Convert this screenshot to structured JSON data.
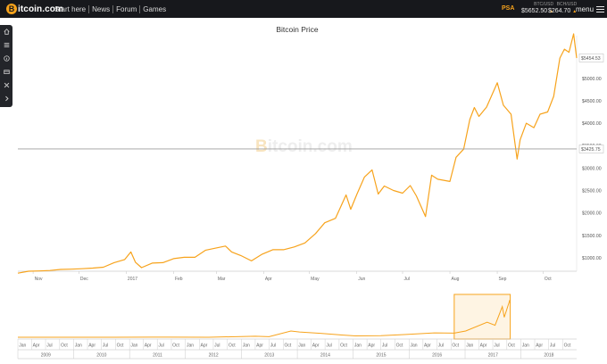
{
  "site": {
    "logo_text": "itcoin.com",
    "logo_mark": "B",
    "nav": [
      "Start here",
      "News",
      "Forum",
      "Games"
    ],
    "psa": "PSA",
    "tickers": [
      {
        "pair": "BTC/USD",
        "price": "$5652.50",
        "direction": "up"
      },
      {
        "pair": "BCH/USD",
        "price": "$264.70",
        "direction": "up"
      }
    ],
    "menu_label": "menu",
    "accent_color": "#f7a31c"
  },
  "sidebar": {
    "icons": [
      "home-icon",
      "list-icon",
      "info-icon",
      "wallet-icon",
      "tools-icon",
      "expand-chevron-icon"
    ]
  },
  "chart": {
    "title": "Bitcoin Price",
    "watermark_mark": "B",
    "watermark_text": "itcoin.com",
    "crosshair_label": "$3425.75",
    "last_label": "$5454.53"
  },
  "chart_data": {
    "type": "line",
    "title": "Bitcoin Price",
    "line_color": "#f7a31c",
    "main": {
      "x_ticks": [
        "Nov",
        "Dec",
        "2017",
        "Feb",
        "Mar",
        "Apr",
        "May",
        "Jun",
        "Jul",
        "Aug",
        "Sep",
        "Oct"
      ],
      "y_ticks": [
        "$1000.00",
        "$1500.00",
        "$2000.00",
        "$2500.00",
        "$3000.00",
        "$3500.00",
        "$4000.00",
        "$4500.00",
        "$5000.00",
        "$5500.00"
      ],
      "ylim": [
        700,
        5950
      ],
      "x_range": [
        "2016-10-22",
        "2017-10-23"
      ],
      "crosshair_value": 3425.75,
      "last_value": 5454.53,
      "points": [
        [
          "2016-10-22",
          656
        ],
        [
          "2016-10-29",
          700
        ],
        [
          "2016-11-05",
          705
        ],
        [
          "2016-11-12",
          715
        ],
        [
          "2016-11-19",
          740
        ],
        [
          "2016-11-26",
          745
        ],
        [
          "2016-12-03",
          755
        ],
        [
          "2016-12-10",
          770
        ],
        [
          "2016-12-17",
          790
        ],
        [
          "2016-12-24",
          890
        ],
        [
          "2016-12-31",
          960
        ],
        [
          "2017-01-04",
          1130
        ],
        [
          "2017-01-07",
          900
        ],
        [
          "2017-01-11",
          780
        ],
        [
          "2017-01-18",
          880
        ],
        [
          "2017-01-25",
          890
        ],
        [
          "2017-02-01",
          980
        ],
        [
          "2017-02-08",
          1010
        ],
        [
          "2017-02-15",
          1010
        ],
        [
          "2017-02-22",
          1170
        ],
        [
          "2017-03-01",
          1220
        ],
        [
          "2017-03-07",
          1260
        ],
        [
          "2017-03-11",
          1130
        ],
        [
          "2017-03-17",
          1050
        ],
        [
          "2017-03-24",
          930
        ],
        [
          "2017-03-31",
          1080
        ],
        [
          "2017-04-07",
          1180
        ],
        [
          "2017-04-14",
          1180
        ],
        [
          "2017-04-21",
          1240
        ],
        [
          "2017-04-28",
          1330
        ],
        [
          "2017-05-05",
          1540
        ],
        [
          "2017-05-11",
          1780
        ],
        [
          "2017-05-18",
          1880
        ],
        [
          "2017-05-25",
          2400
        ],
        [
          "2017-05-28",
          2080
        ],
        [
          "2017-06-01",
          2410
        ],
        [
          "2017-06-06",
          2800
        ],
        [
          "2017-06-11",
          2960
        ],
        [
          "2017-06-15",
          2420
        ],
        [
          "2017-06-19",
          2600
        ],
        [
          "2017-06-25",
          2500
        ],
        [
          "2017-07-01",
          2440
        ],
        [
          "2017-07-06",
          2610
        ],
        [
          "2017-07-10",
          2380
        ],
        [
          "2017-07-16",
          1920
        ],
        [
          "2017-07-20",
          2840
        ],
        [
          "2017-07-24",
          2750
        ],
        [
          "2017-08-01",
          2700
        ],
        [
          "2017-08-05",
          3240
        ],
        [
          "2017-08-10",
          3420
        ],
        [
          "2017-08-14",
          4080
        ],
        [
          "2017-08-17",
          4350
        ],
        [
          "2017-08-20",
          4150
        ],
        [
          "2017-08-25",
          4360
        ],
        [
          "2017-09-01",
          4900
        ],
        [
          "2017-09-05",
          4400
        ],
        [
          "2017-09-10",
          4200
        ],
        [
          "2017-09-14",
          3200
        ],
        [
          "2017-09-16",
          3630
        ],
        [
          "2017-09-20",
          4000
        ],
        [
          "2017-09-25",
          3900
        ],
        [
          "2017-09-29",
          4200
        ],
        [
          "2017-10-04",
          4250
        ],
        [
          "2017-10-08",
          4600
        ],
        [
          "2017-10-12",
          5450
        ],
        [
          "2017-10-15",
          5650
        ],
        [
          "2017-10-18",
          5580
        ],
        [
          "2017-10-21",
          5990
        ],
        [
          "2017-10-23",
          5450
        ]
      ]
    },
    "navigator": {
      "x_range": [
        "2009-01-01",
        "2018-12-31"
      ],
      "selection": [
        "2016-10-22",
        "2017-10-23"
      ],
      "month_ticks": [
        "Jan",
        "Apr",
        "Jul",
        "Oct"
      ],
      "year_labels": [
        "2009",
        "2010",
        "2011",
        "2012",
        "2013",
        "2014",
        "2015",
        "2016",
        "2017",
        "2018"
      ],
      "points": [
        [
          "2009-01-01",
          0
        ],
        [
          "2010-07-01",
          0
        ],
        [
          "2011-06-01",
          20
        ],
        [
          "2011-09-01",
          8
        ],
        [
          "2012-06-01",
          6
        ],
        [
          "2013-04-01",
          150
        ],
        [
          "2013-07-01",
          90
        ],
        [
          "2013-11-20",
          1000
        ],
        [
          "2014-01-15",
          850
        ],
        [
          "2014-06-01",
          630
        ],
        [
          "2014-10-01",
          380
        ],
        [
          "2015-01-15",
          220
        ],
        [
          "2015-07-01",
          260
        ],
        [
          "2015-12-01",
          430
        ],
        [
          "2016-06-15",
          700
        ],
        [
          "2016-10-22",
          656
        ],
        [
          "2017-01-05",
          1000
        ],
        [
          "2017-05-25",
          2400
        ],
        [
          "2017-07-16",
          1920
        ],
        [
          "2017-09-01",
          4900
        ],
        [
          "2017-09-14",
          3200
        ],
        [
          "2017-10-21",
          5990
        ],
        [
          "2017-10-23",
          5450
        ]
      ]
    }
  }
}
